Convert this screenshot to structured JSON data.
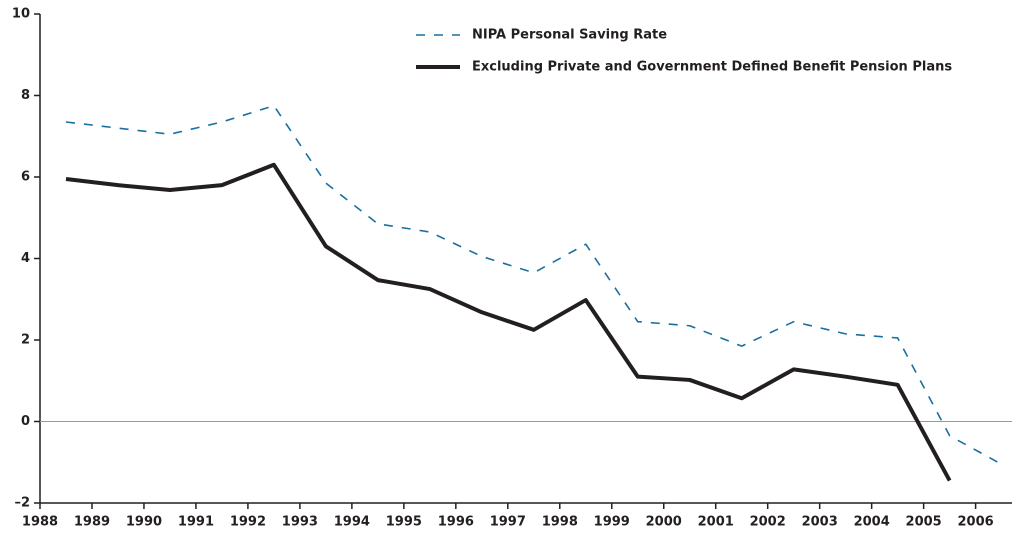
{
  "chart_data": {
    "type": "line",
    "x": [
      1988.5,
      1989.5,
      1990.5,
      1991.5,
      1992.5,
      1993.5,
      1994.5,
      1995.5,
      1996.5,
      1997.5,
      1998.5,
      1999.5,
      2000.5,
      2001.5,
      2002.5,
      2003.5,
      2004.5,
      2005.5,
      2006.5
    ],
    "series": [
      {
        "name": "NIPA Personal Saving Rate",
        "color": "#1a6fa0",
        "dash": true,
        "values": [
          7.35,
          7.2,
          7.05,
          7.35,
          7.75,
          5.85,
          4.85,
          4.65,
          4.05,
          3.65,
          4.35,
          2.45,
          2.35,
          1.85,
          2.45,
          2.15,
          2.05,
          -0.35,
          -1.05
        ]
      },
      {
        "name": "Excluding Private and Government Defined Benefit Pension Plans",
        "color": "#231f20",
        "dash": false,
        "values": [
          5.95,
          5.8,
          5.68,
          5.8,
          6.3,
          4.3,
          3.47,
          3.25,
          2.68,
          2.25,
          2.98,
          1.1,
          1.02,
          0.57,
          1.28,
          1.1,
          0.9,
          -1.45,
          null
        ]
      }
    ],
    "xlim": [
      1988,
      2006.7
    ],
    "xticks": [
      1988,
      1989,
      1990,
      1991,
      1992,
      1993,
      1994,
      1995,
      1996,
      1997,
      1998,
      1999,
      2000,
      2001,
      2002,
      2003,
      2004,
      2005,
      2006
    ],
    "ylim": [
      -2,
      10
    ],
    "yticks": [
      {
        "value": -2,
        "label": "–2"
      },
      0,
      2,
      4,
      6,
      8,
      10
    ],
    "legend": "top-right"
  }
}
